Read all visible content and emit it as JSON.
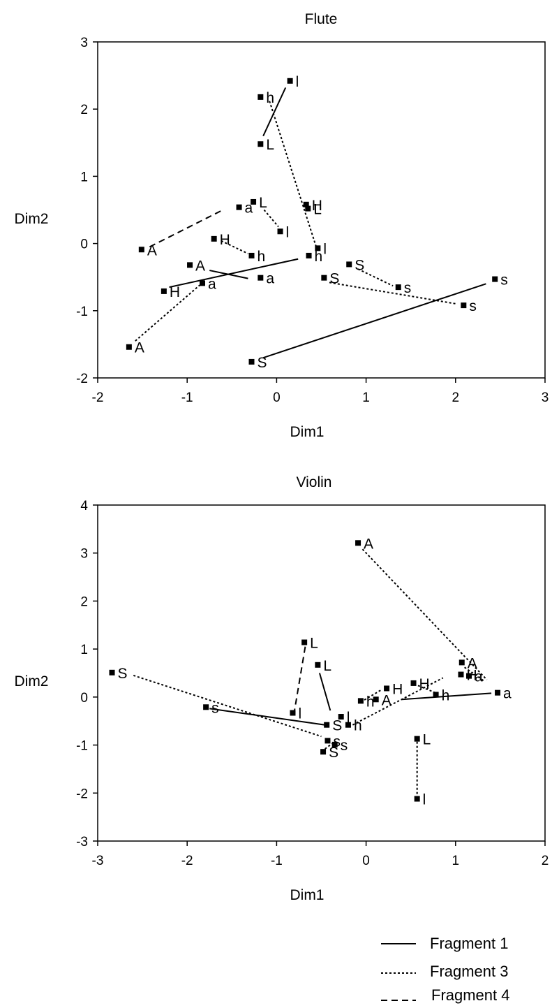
{
  "legend": {
    "entries": [
      {
        "label": "Fragment 1",
        "style": "solid"
      },
      {
        "label": "Fragment 3",
        "style": "dotted"
      },
      {
        "label": "Fragment 4",
        "style": "dashed"
      }
    ],
    "placement": "bottom-right"
  },
  "chart_data": [
    {
      "type": "scatter",
      "title": "Flute",
      "xlabel": "Dim1",
      "ylabel": "Dim2",
      "xlim": [
        -2,
        3
      ],
      "ylim": [
        -2,
        3
      ],
      "xticks": [
        -2,
        -1,
        0,
        1,
        2,
        3
      ],
      "yticks": [
        -2,
        -1,
        0,
        1,
        2,
        3
      ],
      "grid": false,
      "points": [
        {
          "label": "l",
          "x": 0.15,
          "y": 2.42
        },
        {
          "label": "h",
          "x": -0.18,
          "y": 2.18
        },
        {
          "label": "L",
          "x": -0.18,
          "y": 1.48
        },
        {
          "label": "H",
          "x": 0.33,
          "y": 0.58
        },
        {
          "label": "L",
          "x": 0.35,
          "y": 0.52
        },
        {
          "label": "L",
          "x": -0.26,
          "y": 0.62
        },
        {
          "label": "a",
          "x": -0.42,
          "y": 0.54
        },
        {
          "label": "l",
          "x": 0.04,
          "y": 0.18
        },
        {
          "label": "l",
          "x": 0.46,
          "y": -0.07
        },
        {
          "label": "H",
          "x": -0.7,
          "y": 0.07
        },
        {
          "label": "h",
          "x": -0.28,
          "y": -0.18
        },
        {
          "label": "h",
          "x": 0.36,
          "y": -0.18
        },
        {
          "label": "A",
          "x": -1.51,
          "y": -0.09
        },
        {
          "label": "A",
          "x": -0.97,
          "y": -0.32
        },
        {
          "label": "a",
          "x": -0.18,
          "y": -0.51
        },
        {
          "label": "H",
          "x": -1.26,
          "y": -0.71
        },
        {
          "label": "a",
          "x": -0.83,
          "y": -0.59
        },
        {
          "label": "A",
          "x": -1.65,
          "y": -1.54
        },
        {
          "label": "S",
          "x": -0.28,
          "y": -1.76
        },
        {
          "label": "S",
          "x": 0.81,
          "y": -0.31
        },
        {
          "label": "S",
          "x": 0.53,
          "y": -0.51
        },
        {
          "label": "s",
          "x": 1.36,
          "y": -0.65
        },
        {
          "label": "s",
          "x": 2.09,
          "y": -0.92
        },
        {
          "label": "s",
          "x": 2.44,
          "y": -0.53
        }
      ],
      "segments": [
        {
          "fragment": "Fragment 1",
          "from": [
            -0.15,
            1.6
          ],
          "to": [
            0.1,
            2.32
          ]
        },
        {
          "fragment": "Fragment 1",
          "from": [
            -1.2,
            -0.65
          ],
          "to": [
            0.24,
            -0.23
          ]
        },
        {
          "fragment": "Fragment 1",
          "from": [
            -0.75,
            -0.4
          ],
          "to": [
            -0.32,
            -0.52
          ]
        },
        {
          "fragment": "Fragment 1",
          "from": [
            -0.15,
            -1.7
          ],
          "to": [
            2.34,
            -0.6
          ]
        },
        {
          "fragment": "Fragment 3",
          "from": [
            -0.08,
            2.12
          ],
          "to": [
            0.44,
            -0.04
          ]
        },
        {
          "fragment": "Fragment 3",
          "from": [
            -0.14,
            0.5
          ],
          "to": [
            0.02,
            0.25
          ]
        },
        {
          "fragment": "Fragment 3",
          "from": [
            -0.62,
            0.04
          ],
          "to": [
            -0.32,
            -0.15
          ]
        },
        {
          "fragment": "Fragment 3",
          "from": [
            -1.58,
            -1.45
          ],
          "to": [
            -0.86,
            -0.62
          ]
        },
        {
          "fragment": "Fragment 3",
          "from": [
            0.59,
            -0.58
          ],
          "to": [
            2.02,
            -0.9
          ]
        },
        {
          "fragment": "Fragment 3",
          "from": [
            0.91,
            -0.38
          ],
          "to": [
            1.3,
            -0.63
          ]
        },
        {
          "fragment": "Fragment 4",
          "from": [
            -1.42,
            -0.05
          ],
          "to": [
            -0.6,
            0.5
          ]
        }
      ]
    },
    {
      "type": "scatter",
      "title": "Violin",
      "xlabel": "Dim1",
      "ylabel": "Dim2",
      "xlim": [
        -3,
        2
      ],
      "ylim": [
        -3,
        4
      ],
      "xticks": [
        -3,
        -2,
        -1,
        0,
        1,
        2
      ],
      "yticks": [
        -3,
        -2,
        -1,
        0,
        1,
        2,
        3,
        4
      ],
      "grid": false,
      "points": [
        {
          "label": "A",
          "x": -0.09,
          "y": 3.21
        },
        {
          "label": "L",
          "x": -0.69,
          "y": 1.14
        },
        {
          "label": "L",
          "x": -0.54,
          "y": 0.67
        },
        {
          "label": "A",
          "x": 1.07,
          "y": 0.72
        },
        {
          "label": "H",
          "x": 1.06,
          "y": 0.47
        },
        {
          "label": "a",
          "x": 1.15,
          "y": 0.44
        },
        {
          "label": "H",
          "x": 0.53,
          "y": 0.29
        },
        {
          "label": "H",
          "x": 0.23,
          "y": 0.18
        },
        {
          "label": "h",
          "x": 0.78,
          "y": 0.05
        },
        {
          "label": "a",
          "x": 1.47,
          "y": 0.09
        },
        {
          "label": "h",
          "x": -0.06,
          "y": -0.08
        },
        {
          "label": "A",
          "x": 0.11,
          "y": -0.05
        },
        {
          "label": "S",
          "x": -2.84,
          "y": 0.51
        },
        {
          "label": "s",
          "x": -1.79,
          "y": -0.21
        },
        {
          "label": "l",
          "x": -0.82,
          "y": -0.33
        },
        {
          "label": "l",
          "x": -0.28,
          "y": -0.41
        },
        {
          "label": "h",
          "x": -0.2,
          "y": -0.58
        },
        {
          "label": "S",
          "x": -0.44,
          "y": -0.58
        },
        {
          "label": "s",
          "x": -0.43,
          "y": -0.91
        },
        {
          "label": "s",
          "x": -0.35,
          "y": -0.99
        },
        {
          "label": "S",
          "x": -0.48,
          "y": -1.14
        },
        {
          "label": "L",
          "x": 0.57,
          "y": -0.87
        },
        {
          "label": "l",
          "x": 0.57,
          "y": -2.12
        }
      ],
      "segments": [
        {
          "fragment": "Fragment 1",
          "from": [
            -0.52,
            0.5
          ],
          "to": [
            -0.4,
            -0.28
          ]
        },
        {
          "fragment": "Fragment 1",
          "from": [
            -1.75,
            -0.24
          ],
          "to": [
            -0.46,
            -0.58
          ]
        },
        {
          "fragment": "Fragment 1",
          "from": [
            0.4,
            -0.05
          ],
          "to": [
            1.4,
            0.08
          ]
        },
        {
          "fragment": "Fragment 3",
          "from": [
            -0.04,
            3.08
          ],
          "to": [
            1.35,
            0.36
          ]
        },
        {
          "fragment": "Fragment 3",
          "from": [
            -2.6,
            0.45
          ],
          "to": [
            -0.5,
            -0.82
          ]
        },
        {
          "fragment": "Fragment 3",
          "from": [
            -0.15,
            -0.58
          ],
          "to": [
            0.86,
            0.4
          ]
        },
        {
          "fragment": "Fragment 3",
          "from": [
            -0.02,
            -0.06
          ],
          "to": [
            0.18,
            0.16
          ]
        },
        {
          "fragment": "Fragment 3",
          "from": [
            0.58,
            0.24
          ],
          "to": [
            0.8,
            0.07
          ]
        },
        {
          "fragment": "Fragment 3",
          "from": [
            1.1,
            0.62
          ],
          "to": [
            1.33,
            0.32
          ]
        },
        {
          "fragment": "Fragment 3",
          "from": [
            -0.46,
            -1.08
          ],
          "to": [
            -0.38,
            -0.97
          ]
        },
        {
          "fragment": "Fragment 3",
          "from": [
            0.57,
            -0.93
          ],
          "to": [
            0.57,
            -2.05
          ]
        },
        {
          "fragment": "Fragment 4",
          "from": [
            -0.68,
            1.05
          ],
          "to": [
            -0.8,
            -0.28
          ]
        }
      ]
    }
  ]
}
